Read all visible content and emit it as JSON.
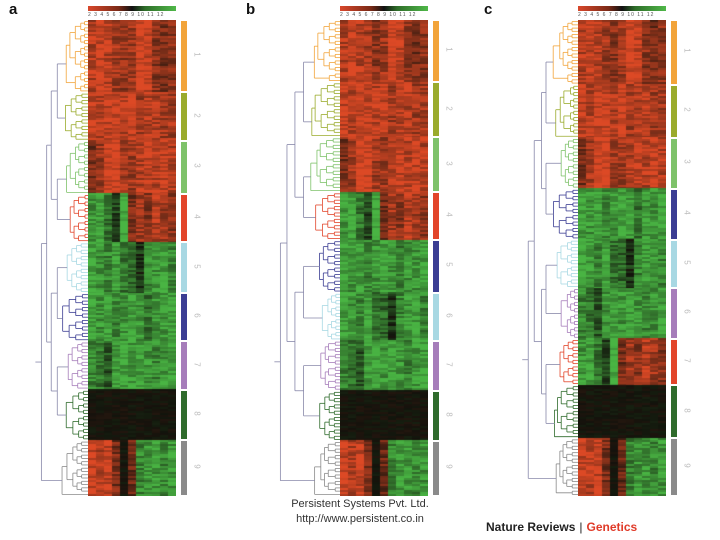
{
  "panels": [
    {
      "letter": "a",
      "clusters": [
        {
          "name": "1",
          "color": "#f2a43a",
          "weight": 3
        },
        {
          "name": "2",
          "color": "#9aab2c",
          "weight": 2
        },
        {
          "name": "3",
          "color": "#7ec26a",
          "weight": 2.2
        },
        {
          "name": "4",
          "color": "#e2452a",
          "weight": 2
        },
        {
          "name": "5",
          "color": "#a8d8e3",
          "weight": 2.1
        },
        {
          "name": "6",
          "color": "#3b3d93",
          "weight": 2
        },
        {
          "name": "7",
          "color": "#a67dba",
          "weight": 2
        },
        {
          "name": "8",
          "color": "#2f6b2c",
          "weight": 2.1
        },
        {
          "name": "9",
          "color": "#8a8a8a",
          "weight": 2.3
        }
      ],
      "patterns": [
        [
          0.8,
          0.9,
          0.8,
          0.7,
          0.6,
          0.7,
          1.0,
          0.9,
          0.6,
          0.5,
          0.6
        ],
        [
          0.9,
          0.8,
          0.9,
          0.9,
          0.8,
          0.9,
          0.7,
          0.8,
          0.8,
          0.7,
          0.7
        ],
        [
          0.5,
          0.7,
          1.0,
          1.0,
          0.7,
          0.7,
          0.8,
          0.9,
          0.8,
          0.9,
          0.8
        ],
        [
          -0.8,
          -0.9,
          -0.6,
          -0.3,
          -1.0,
          0.5,
          0.7,
          0.6,
          0.8,
          0.7,
          0.6
        ],
        [
          -0.9,
          -0.8,
          -0.7,
          -0.9,
          -0.6,
          -0.5,
          -0.2,
          -0.7,
          -0.8,
          -0.9,
          -0.7
        ],
        [
          -0.9,
          -0.8,
          -0.9,
          -0.7,
          -0.8,
          -0.9,
          -0.8,
          -0.6,
          -0.8,
          -0.8,
          -0.9
        ],
        [
          -0.7,
          -0.6,
          -0.4,
          -0.8,
          -0.9,
          -0.8,
          -0.9,
          -0.8,
          -0.7,
          -0.8,
          -0.9
        ],
        [
          0.0,
          0.0,
          0.0,
          0.0,
          0.0,
          0.0,
          0.0,
          0.0,
          0.0,
          0.0,
          0.0
        ],
        [
          0.9,
          0.8,
          0.9,
          0.5,
          0.0,
          0.4,
          -0.7,
          -0.8,
          -0.8,
          -0.7,
          -0.8
        ]
      ]
    },
    {
      "letter": "b",
      "clusters": [
        {
          "name": "1",
          "color": "#f2a43a",
          "weight": 2.6
        },
        {
          "name": "2",
          "color": "#9aab2c",
          "weight": 2.3
        },
        {
          "name": "3",
          "color": "#7ec26a",
          "weight": 2.3
        },
        {
          "name": "4",
          "color": "#e2452a",
          "weight": 2
        },
        {
          "name": "5",
          "color": "#3b3d93",
          "weight": 2.2
        },
        {
          "name": "6",
          "color": "#a8d8e3",
          "weight": 2
        },
        {
          "name": "7",
          "color": "#a67dba",
          "weight": 2.1
        },
        {
          "name": "8",
          "color": "#2f6b2c",
          "weight": 2.1
        },
        {
          "name": "9",
          "color": "#8a8a8a",
          "weight": 2.3
        }
      ],
      "patterns": [
        [
          0.8,
          0.9,
          0.8,
          0.7,
          0.6,
          0.7,
          1.0,
          0.9,
          0.6,
          0.5,
          0.6
        ],
        [
          0.9,
          0.8,
          0.9,
          0.9,
          0.8,
          0.9,
          0.7,
          0.8,
          0.8,
          0.7,
          0.7
        ],
        [
          0.5,
          0.7,
          1.0,
          1.0,
          0.7,
          0.7,
          0.8,
          0.9,
          0.8,
          0.9,
          0.8
        ],
        [
          -0.8,
          -0.9,
          -0.6,
          -0.3,
          -1.0,
          0.5,
          0.7,
          0.6,
          0.8,
          0.7,
          0.6
        ],
        [
          -0.9,
          -0.8,
          -0.9,
          -0.7,
          -0.8,
          -0.9,
          -0.8,
          -0.6,
          -0.8,
          -0.8,
          -0.9
        ],
        [
          -0.9,
          -0.8,
          -0.7,
          -0.9,
          -0.6,
          -0.5,
          -0.2,
          -0.7,
          -0.8,
          -0.9,
          -0.7
        ],
        [
          -0.7,
          -0.6,
          -0.4,
          -0.8,
          -0.9,
          -0.8,
          -0.9,
          -0.8,
          -0.7,
          -0.8,
          -0.9
        ],
        [
          0.0,
          0.0,
          0.0,
          0.0,
          0.0,
          0.0,
          0.0,
          0.0,
          0.0,
          0.0,
          0.0
        ],
        [
          0.9,
          0.8,
          0.9,
          0.5,
          0.0,
          0.4,
          -0.7,
          -0.8,
          -0.8,
          -0.7,
          -0.8
        ]
      ]
    },
    {
      "letter": "c",
      "clusters": [
        {
          "name": "1",
          "color": "#f2a43a",
          "weight": 2.8
        },
        {
          "name": "2",
          "color": "#9aab2c",
          "weight": 2.3
        },
        {
          "name": "3",
          "color": "#7ec26a",
          "weight": 2.2
        },
        {
          "name": "4",
          "color": "#3b3d93",
          "weight": 2.2
        },
        {
          "name": "5",
          "color": "#a8d8e3",
          "weight": 2.1
        },
        {
          "name": "6",
          "color": "#a67dba",
          "weight": 2.2
        },
        {
          "name": "7",
          "color": "#e2452a",
          "weight": 2
        },
        {
          "name": "8",
          "color": "#2f6b2c",
          "weight": 2.3
        },
        {
          "name": "9",
          "color": "#8a8a8a",
          "weight": 2.5
        }
      ],
      "patterns": [
        [
          0.8,
          0.9,
          0.8,
          0.7,
          0.6,
          0.7,
          1.0,
          0.9,
          0.6,
          0.5,
          0.6
        ],
        [
          0.9,
          0.8,
          0.9,
          0.9,
          0.8,
          0.9,
          0.7,
          0.8,
          0.8,
          0.7,
          0.7
        ],
        [
          0.5,
          0.7,
          1.0,
          1.0,
          0.7,
          0.7,
          0.8,
          0.9,
          0.8,
          0.9,
          0.8
        ],
        [
          -0.9,
          -0.8,
          -0.9,
          -0.7,
          -0.8,
          -0.9,
          -0.8,
          -0.6,
          -0.8,
          -0.8,
          -0.9
        ],
        [
          -0.9,
          -0.8,
          -0.7,
          -0.9,
          -0.6,
          -0.5,
          -0.2,
          -0.7,
          -0.8,
          -0.9,
          -0.7
        ],
        [
          -0.7,
          -0.6,
          -0.4,
          -0.8,
          -0.9,
          -0.8,
          -0.9,
          -0.8,
          -0.7,
          -0.8,
          -0.9
        ],
        [
          -0.8,
          -0.9,
          -0.6,
          -0.3,
          -1.0,
          0.5,
          0.7,
          0.6,
          0.8,
          0.7,
          0.6
        ],
        [
          0.0,
          0.0,
          0.0,
          0.0,
          0.0,
          0.0,
          0.0,
          0.0,
          0.0,
          0.0,
          0.0
        ],
        [
          0.9,
          0.8,
          0.9,
          0.5,
          0.0,
          0.4,
          -0.7,
          -0.8,
          -0.8,
          -0.7,
          -0.8
        ]
      ]
    }
  ],
  "caption": {
    "line1": "Persistent Systems Pvt. Ltd.",
    "line2": "http://www.persistent.co.in"
  },
  "journal": {
    "name": "Nature Reviews",
    "separator": "|",
    "section": "Genetics"
  }
}
